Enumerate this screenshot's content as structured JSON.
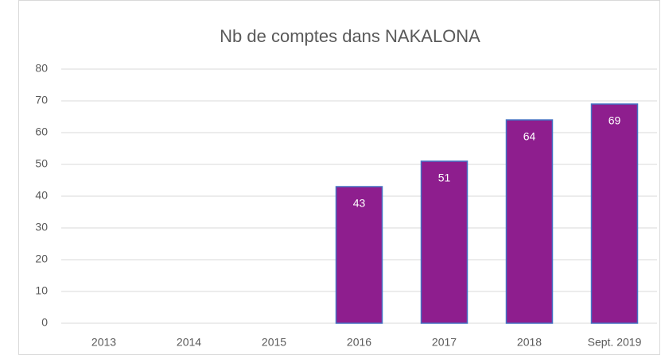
{
  "chart_data": {
    "type": "bar",
    "title": "Nb de comptes dans NAKALONA",
    "categories": [
      "2013",
      "2014",
      "2015",
      "2016",
      "2017",
      "2018",
      "Sept. 2019"
    ],
    "values": [
      0,
      0,
      0,
      43,
      51,
      64,
      69
    ],
    "color": "#8e1e8e",
    "edge_color": "#4472c4",
    "ylim": [
      0,
      80
    ],
    "yticks": [
      0,
      10,
      20,
      30,
      40,
      50,
      60,
      70,
      80
    ],
    "grid": true
  }
}
